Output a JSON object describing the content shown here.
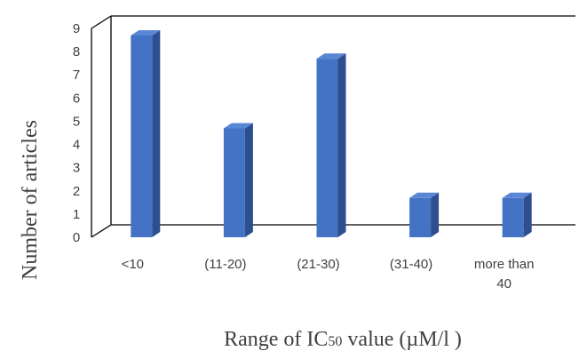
{
  "chart_data": {
    "type": "bar",
    "categories": [
      "<10",
      "(11-20)",
      "(21-30)",
      "(31-40)",
      "more than 40"
    ],
    "category_lines": [
      [
        "<10"
      ],
      [
        "(11-20)"
      ],
      [
        "(21-30)"
      ],
      [
        "(31-40)"
      ],
      [
        "more than",
        "40"
      ]
    ],
    "values": [
      9,
      5,
      8,
      2,
      2
    ],
    "xlabel_main": "Range of IC",
    "xlabel_sub": "50",
    "xlabel_tail": " value (µM/l )",
    "ylabel": "Number of articles",
    "ylim": [
      0,
      9
    ],
    "yticks": [
      0,
      1,
      2,
      3,
      4,
      5,
      6,
      7,
      8,
      9
    ],
    "grid": false,
    "three_d": true,
    "colors": {
      "bar_front": "#4472C4",
      "bar_side": "#2E4F8F",
      "bar_top": "#5A86D6",
      "axis": "#000000",
      "text": "#404040"
    }
  }
}
